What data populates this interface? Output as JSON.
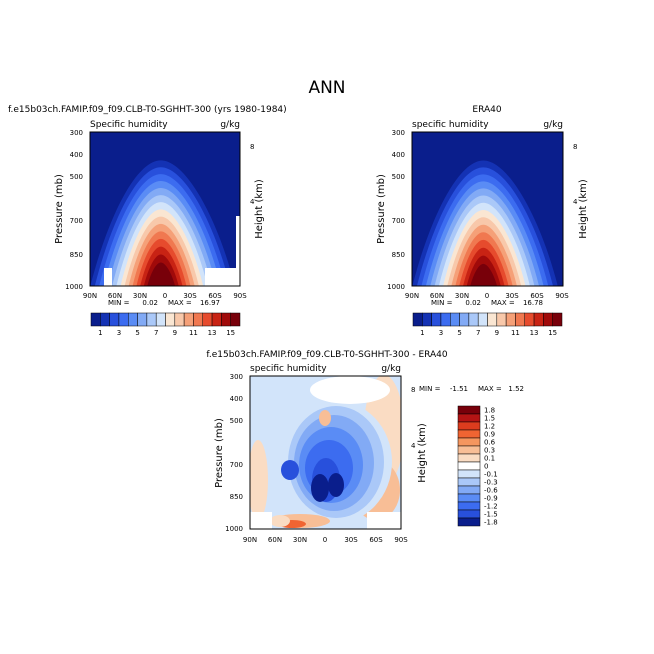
{
  "figure": {
    "title": "ANN"
  },
  "chart_data": [
    {
      "type": "contour",
      "panel": "model",
      "title": "f.e15b03ch.FAMIP.f09_f09.CLB-T0-SGHHT-300 (yrs 1980-1984)",
      "variable": "Specific humidity",
      "units": "g/kg",
      "xlabel": "",
      "ylabel": "Pressure (mb)",
      "ylabel_right": "Height (km)",
      "x_ticks": [
        "90N",
        "60N",
        "30N",
        "0",
        "30S",
        "60S",
        "90S"
      ],
      "y_ticks": [
        "300",
        "400",
        "500",
        "700",
        "850",
        "1000"
      ],
      "y_ticks_right": [
        "8",
        "4"
      ],
      "min_label": "MIN =",
      "min_value": "0.02",
      "max_label": "MAX =",
      "max_value": "16.97",
      "ylim": [
        1000,
        300
      ],
      "peak": {
        "lat": 5,
        "pressure": 1000,
        "value": 16.97
      }
    },
    {
      "type": "contour",
      "panel": "obs",
      "title": "ERA40",
      "variable": "specific humidity",
      "units": "g/kg",
      "xlabel": "",
      "ylabel": "Pressure (mb)",
      "ylabel_right": "Height (km)",
      "x_ticks": [
        "90N",
        "60N",
        "30N",
        "0",
        "30S",
        "60S",
        "90S"
      ],
      "y_ticks": [
        "300",
        "400",
        "500",
        "700",
        "850",
        "1000"
      ],
      "y_ticks_right": [
        "8",
        "4"
      ],
      "min_label": "MIN =",
      "min_value": "0.02",
      "max_label": "MAX =",
      "max_value": "16.78",
      "ylim": [
        1000,
        300
      ],
      "peak": {
        "lat": 5,
        "pressure": 1000,
        "value": 16.78
      }
    },
    {
      "type": "contour",
      "panel": "diff",
      "title": "f.e15b03ch.FAMIP.f09_f09.CLB-T0-SGHHT-300 - ERA40",
      "variable": "specific humidity",
      "units": "g/kg",
      "ylabel": "Pressure (mb)",
      "ylabel_right": "Height (km)",
      "x_ticks": [
        "90N",
        "60N",
        "30N",
        "0",
        "30S",
        "60S",
        "90S"
      ],
      "y_ticks": [
        "300",
        "400",
        "500",
        "700",
        "850",
        "1000"
      ],
      "y_ticks_right": [
        "8",
        "4"
      ],
      "min_label": "MIN =",
      "min_value": "-1.51",
      "max_label": "MAX =",
      "max_value": "1.52",
      "ylim": [
        1000,
        300
      ]
    }
  ],
  "colorbar_main": {
    "colors": [
      "#0a1e8c",
      "#1432b4",
      "#2850dc",
      "#3c6cf0",
      "#5a8cf5",
      "#82aaf5",
      "#aac8f8",
      "#d2e4fa",
      "#fae6d2",
      "#f8c8aa",
      "#f5a078",
      "#f07850",
      "#e64b2d",
      "#c82314",
      "#a00a0a",
      "#78000a"
    ],
    "labels": [
      "1",
      "3",
      "5",
      "7",
      "9",
      "11",
      "13",
      "15"
    ]
  },
  "colorbar_diff": {
    "colors": [
      "#78000a",
      "#b41414",
      "#dc3c1e",
      "#f06432",
      "#f5965f",
      "#f8be96",
      "#fadcc3",
      "#ffffff",
      "#d2e4fa",
      "#aac8f8",
      "#82aaf5",
      "#5a8cf5",
      "#3c6cf0",
      "#2850dc",
      "#0a1e8c"
    ],
    "labels": [
      "1.8",
      "1.5",
      "1.2",
      "0.9",
      "0.6",
      "0.3",
      "0.1",
      "0",
      "-0.1",
      "-0.3",
      "-0.6",
      "-0.9",
      "-1.2",
      "-1.5",
      "-1.8"
    ]
  }
}
